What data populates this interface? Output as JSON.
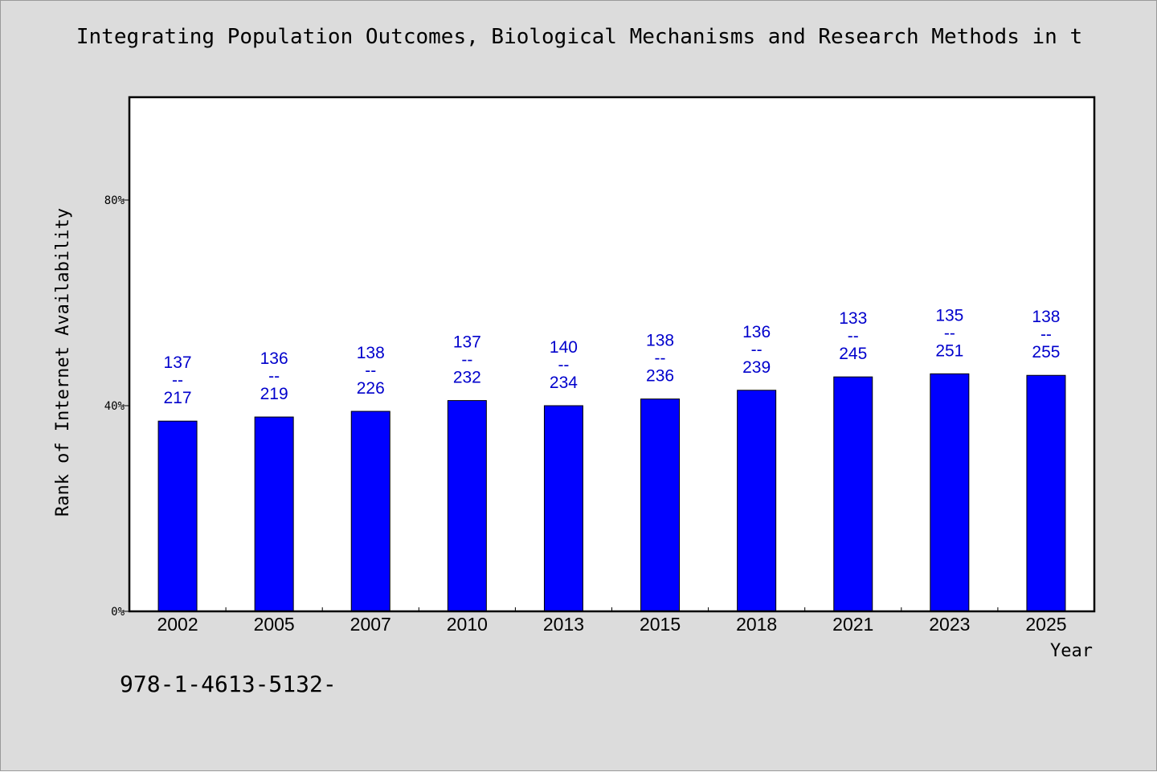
{
  "title": "Integrating Population Outcomes, Biological Mechanisms and Research Methods in t",
  "footer_text": "978-1-4613-5132-",
  "colors": {
    "background": "#dcdcdc",
    "plot_background": "#ffffff",
    "bar": "#0000ff",
    "bar_label": "#0000cc"
  },
  "chart_data": {
    "type": "bar",
    "categories": [
      "2002",
      "2005",
      "2007",
      "2010",
      "2013",
      "2015",
      "2018",
      "2021",
      "2023",
      "2025"
    ],
    "values": [
      37,
      37.8,
      38.9,
      41,
      40,
      41.3,
      43,
      45.6,
      46.2,
      45.9
    ],
    "bar_labels": [
      [
        "137",
        "--",
        "217"
      ],
      [
        "136",
        "--",
        "219"
      ],
      [
        "138",
        "--",
        "226"
      ],
      [
        "137",
        "--",
        "232"
      ],
      [
        "140",
        "--",
        "234"
      ],
      [
        "138",
        "--",
        "236"
      ],
      [
        "136",
        "--",
        "239"
      ],
      [
        "133",
        "--",
        "245"
      ],
      [
        "135",
        "--",
        "251"
      ],
      [
        "138",
        "--",
        "255"
      ]
    ],
    "title": "Integrating Population Outcomes, Biological Mechanisms and Research Methods in t",
    "xlabel": "Year",
    "ylabel": "Rank of Internet Availability",
    "ylim": [
      0,
      100
    ],
    "yticks": [
      0,
      40,
      80
    ],
    "ytick_labels": [
      "0%",
      "40%",
      "80%"
    ],
    "grid": false,
    "legend": "none"
  }
}
